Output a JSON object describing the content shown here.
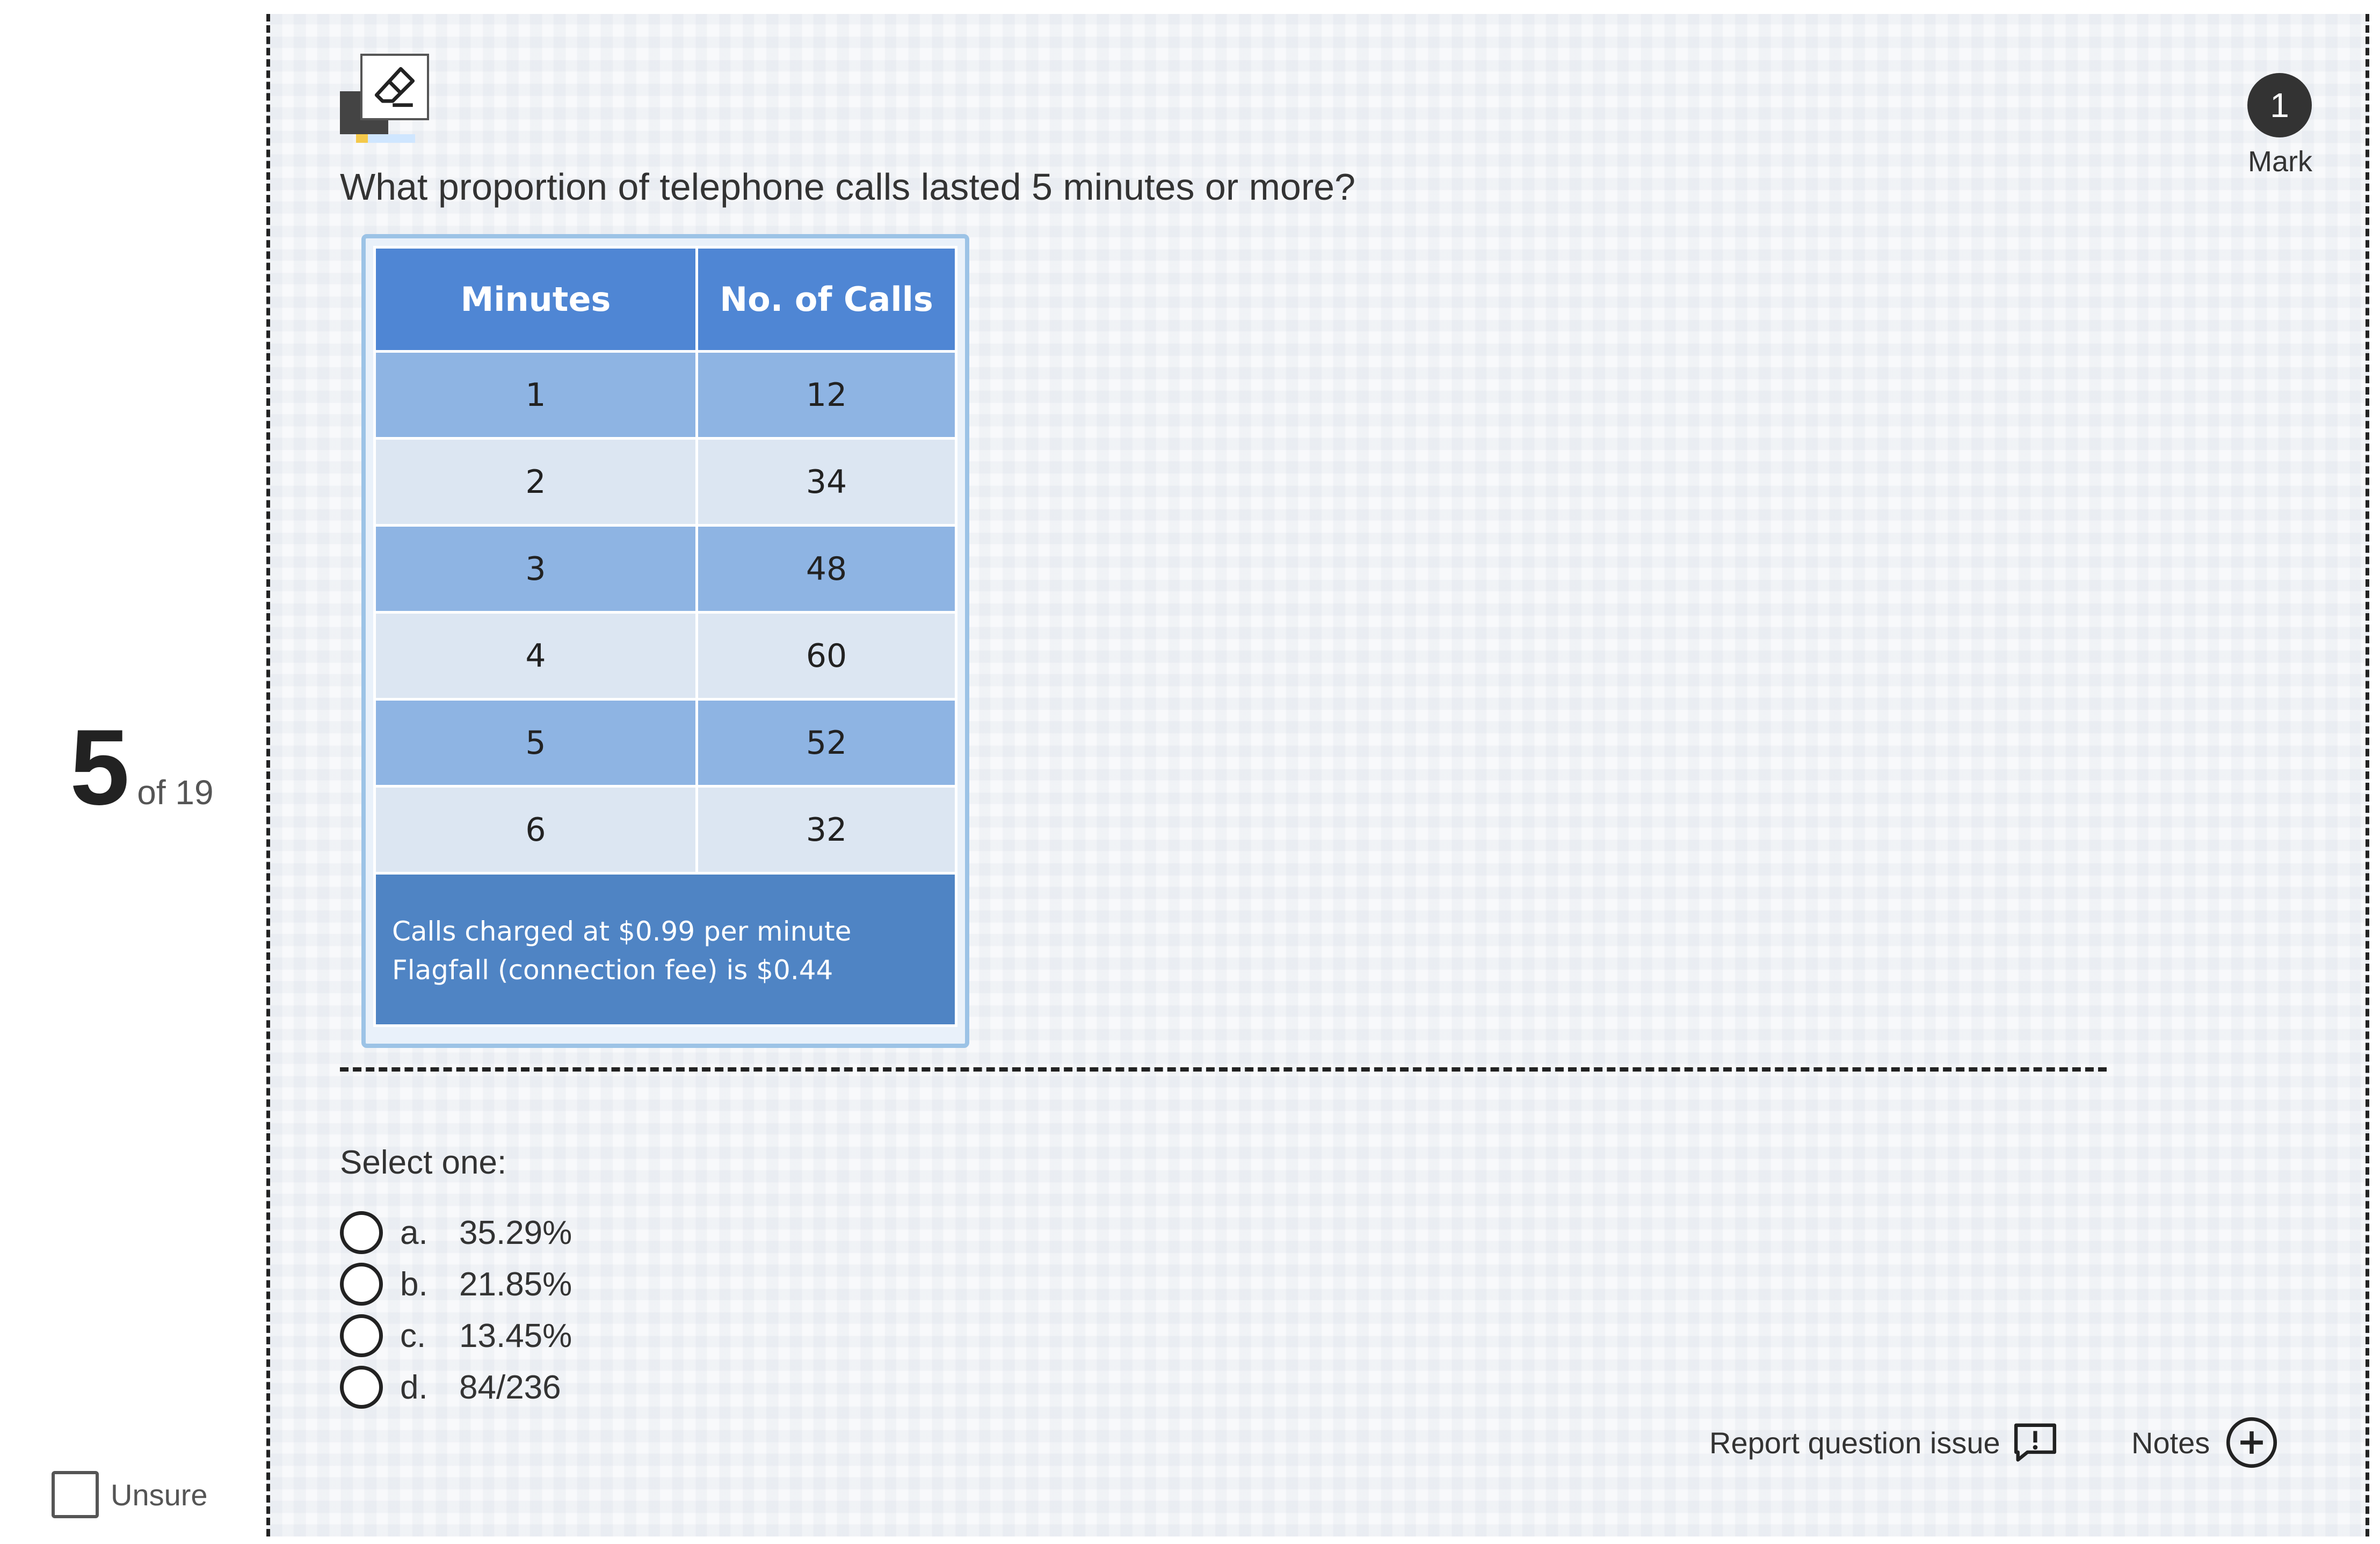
{
  "progress": {
    "current": "5",
    "of_label": "of 19"
  },
  "unsure": {
    "label": "Unsure"
  },
  "mark": {
    "value": "1",
    "label": "Mark"
  },
  "question": {
    "text": "What proportion of telephone calls lasted 5 minutes or more?"
  },
  "table": {
    "headers": [
      "Minutes",
      "No. of Calls"
    ],
    "rows": [
      [
        "1",
        "12"
      ],
      [
        "2",
        "34"
      ],
      [
        "3",
        "48"
      ],
      [
        "4",
        "60"
      ],
      [
        "5",
        "52"
      ],
      [
        "6",
        "32"
      ]
    ],
    "notes": [
      "Calls charged at $0.99 per minute",
      "Flagfall (connection fee) is $0.44"
    ]
  },
  "select_label": "Select one:",
  "options": [
    {
      "letter": "a.",
      "text": "35.29%"
    },
    {
      "letter": "b.",
      "text": "21.85%"
    },
    {
      "letter": "c.",
      "text": "13.45%"
    },
    {
      "letter": "d.",
      "text": "84/236"
    }
  ],
  "footer": {
    "report_label": "Report question issue",
    "notes_label": "Notes"
  },
  "icons": {
    "eraser": "eraser-icon",
    "report": "report-issue-icon",
    "notes": "add-note-icon"
  },
  "colors": {
    "table_header": "#4f86d4",
    "row_dark": "#8eb4e3",
    "row_light": "#dce6f2",
    "note_block": "#4f84c4"
  }
}
